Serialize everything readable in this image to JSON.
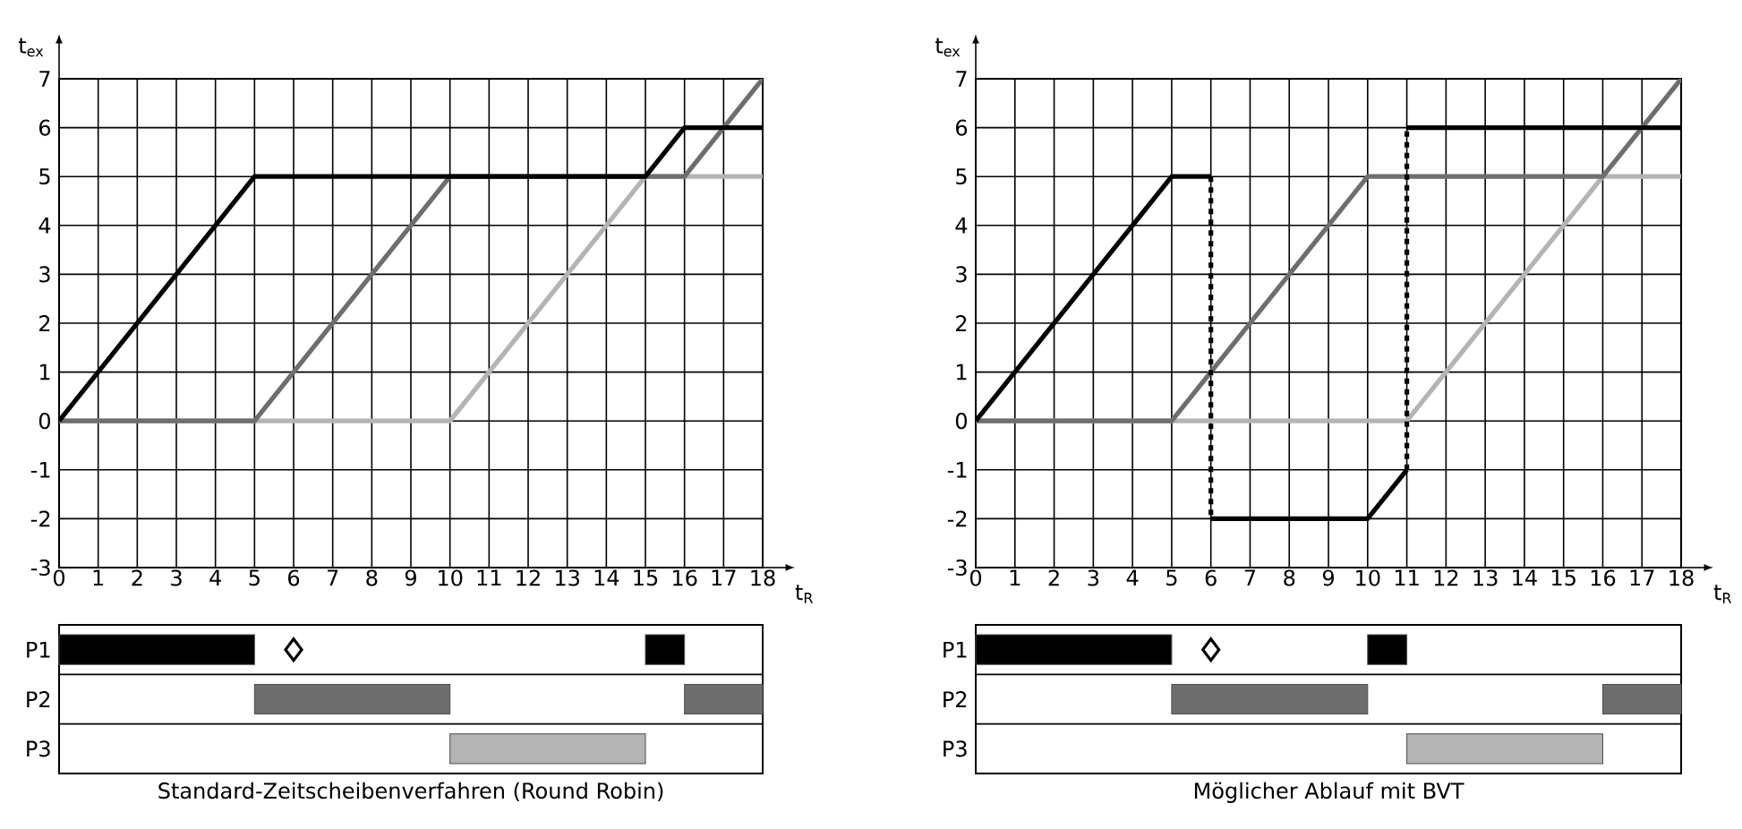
{
  "chart_data": [
    {
      "type": "line",
      "xlabel": "t$_{R}$",
      "ylabel": "t$_{ex}$",
      "xlim": [
        0,
        18
      ],
      "ylim": [
        -3,
        7
      ],
      "xticks": [
        0,
        1,
        2,
        3,
        4,
        5,
        6,
        7,
        8,
        9,
        10,
        11,
        12,
        13,
        14,
        15,
        16,
        17,
        18
      ],
      "yticks": [
        -3,
        -2,
        -1,
        0,
        1,
        2,
        3,
        4,
        5,
        6,
        7
      ],
      "grid": true,
      "series": [
        {
          "color": "#b4b4b4",
          "x": [
            0,
            10,
            15,
            18
          ],
          "values": [
            0,
            0,
            5,
            5
          ]
        },
        {
          "color": "#6e6e6e",
          "x": [
            0,
            5,
            10,
            16,
            18
          ],
          "values": [
            0,
            0,
            5,
            5,
            7
          ]
        },
        {
          "color": "#000000",
          "x": [
            0,
            5,
            15,
            16,
            18
          ],
          "values": [
            0,
            5,
            5,
            6,
            6
          ]
        }
      ]
    },
    {
      "type": "bar",
      "orientation": "horizontal",
      "title": "Standard-Zeitscheibenverfahren (Round Robin)",
      "categories": [
        "P1",
        "P2",
        "P3"
      ],
      "xlim": [
        0,
        18
      ],
      "tick_labels": "y",
      "series": [
        {
          "values": [
            5,
            5,
            5
          ],
          "base": [
            0,
            5,
            10
          ],
          "colors": [
            "#000000",
            "#6e6e6e",
            "#b4b4b4"
          ]
        },
        {
          "values": [
            1,
            2,
            null
          ],
          "base": [
            15,
            16,
            null
          ],
          "colors": [
            "#000000",
            "#6e6e6e",
            "#b4b4b4"
          ]
        },
        {
          "type": "scatter",
          "marker": "diamond",
          "color": "#000000",
          "values": [
            6,
            null,
            null
          ]
        }
      ]
    },
    {
      "type": "line",
      "xlabel": "t$_{R}$",
      "ylabel": "t$_{ex}$",
      "xlim": [
        0,
        18
      ],
      "ylim": [
        -3,
        7
      ],
      "xticks": [
        0,
        1,
        2,
        3,
        4,
        5,
        6,
        7,
        8,
        9,
        10,
        11,
        12,
        13,
        14,
        15,
        16,
        17,
        18
      ],
      "yticks": [
        -3,
        -2,
        -1,
        0,
        1,
        2,
        3,
        4,
        5,
        6,
        7
      ],
      "grid": true,
      "series": [
        {
          "color": "#b4b4b4",
          "x": [
            0,
            11,
            16,
            18
          ],
          "values": [
            0,
            0,
            5,
            5
          ]
        },
        {
          "color": "#6e6e6e",
          "x": [
            0,
            5,
            10,
            16,
            18
          ],
          "values": [
            0,
            0,
            5,
            5,
            7
          ]
        },
        {
          "color": "#000000",
          "x": [
            0,
            5,
            6
          ],
          "values": [
            0,
            5,
            5
          ]
        },
        {
          "color": "#000000",
          "x": [
            6,
            6
          ],
          "values": [
            5,
            -2
          ],
          "line_style": "dashed"
        },
        {
          "color": "#000000",
          "x": [
            6,
            10,
            11
          ],
          "values": [
            -2,
            -2,
            -1
          ]
        },
        {
          "color": "#000000",
          "x": [
            11,
            11
          ],
          "values": [
            -1,
            6
          ],
          "line_style": "dashed"
        },
        {
          "color": "#000000",
          "x": [
            11,
            18
          ],
          "values": [
            6,
            6
          ]
        }
      ]
    },
    {
      "type": "bar",
      "orientation": "horizontal",
      "title": "Möglicher Ablauf mit BVT",
      "categories": [
        "P1",
        "P2",
        "P3"
      ],
      "xlim": [
        0,
        18
      ],
      "tick_labels": "y",
      "series": [
        {
          "values": [
            5,
            5,
            5
          ],
          "base": [
            0,
            5,
            11
          ],
          "colors": [
            "#000000",
            "#6e6e6e",
            "#b4b4b4"
          ]
        },
        {
          "values": [
            1,
            2,
            null
          ],
          "base": [
            10,
            16,
            null
          ],
          "colors": [
            "#000000",
            "#6e6e6e",
            "#b4b4b4"
          ]
        },
        {
          "type": "scatter",
          "marker": "diamond",
          "color": "#000000",
          "values": [
            6,
            null,
            null
          ]
        }
      ]
    }
  ]
}
